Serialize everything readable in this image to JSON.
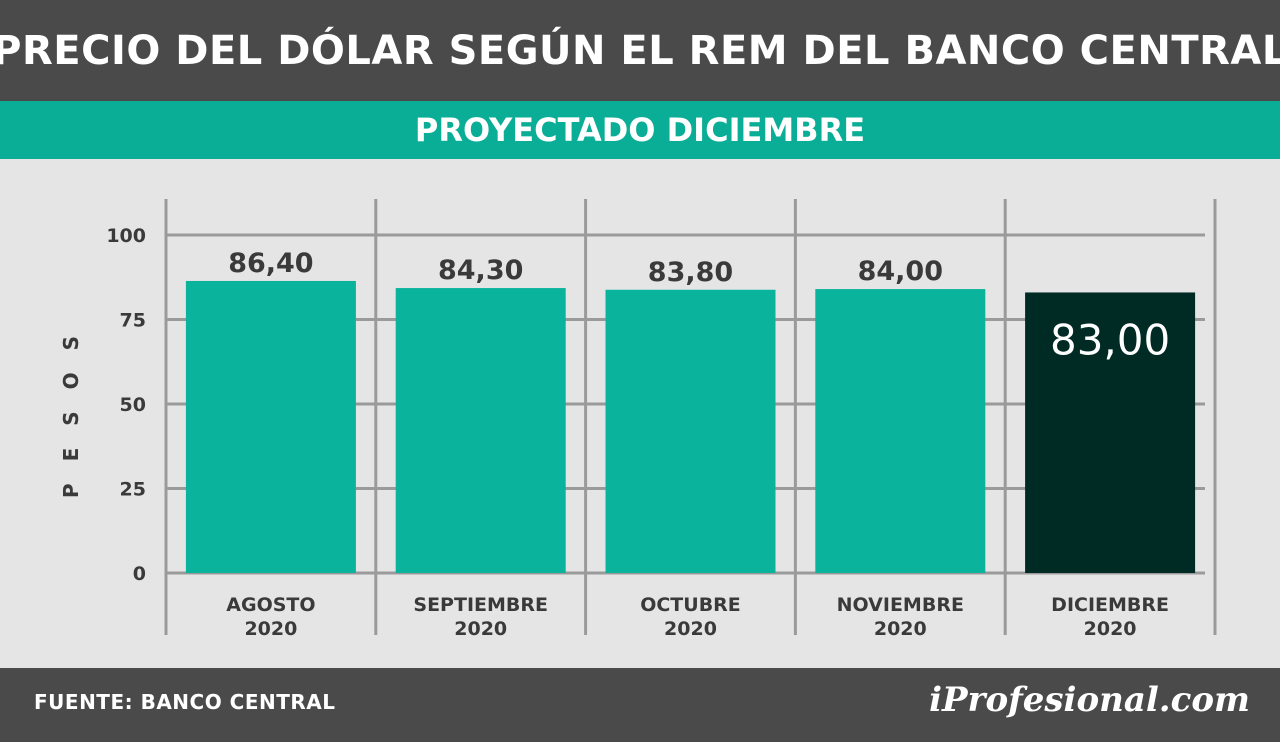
{
  "header": {
    "title": "PRECIO DEL DÓLAR SEGÚN EL REM DEL BANCO CENTRAL"
  },
  "subheader": {
    "title": "PROYECTADO DICIEMBRE"
  },
  "footer": {
    "source": "FUENTE: BANCO CENTRAL",
    "logo": "iProfesional.com"
  },
  "colors": {
    "bar": "#0ab39c",
    "highlight_bar": "#002b25",
    "grid": "#9a9a9a",
    "text": "#3a3a3a"
  },
  "chart_data": {
    "type": "bar",
    "title": "PRECIO DEL DÓLAR SEGÚN EL REM DEL BANCO CENTRAL",
    "subtitle": "PROYECTADO DICIEMBRE",
    "ylabel": "PESOS",
    "xlabel": "",
    "ylim": [
      0,
      100
    ],
    "yticks": [
      0,
      25,
      50,
      75,
      100
    ],
    "grid": true,
    "categories": [
      [
        "AGOSTO",
        "2020"
      ],
      [
        "SEPTIEMBRE",
        "2020"
      ],
      [
        "OCTUBRE",
        "2020"
      ],
      [
        "NOVIEMBRE",
        "2020"
      ],
      [
        "DICIEMBRE",
        "2020"
      ]
    ],
    "values": [
      86.4,
      84.3,
      83.8,
      84.0,
      83.0
    ],
    "value_labels": [
      "86,40",
      "84,30",
      "83,80",
      "84,00",
      "83,00"
    ],
    "highlight_index": 4
  }
}
